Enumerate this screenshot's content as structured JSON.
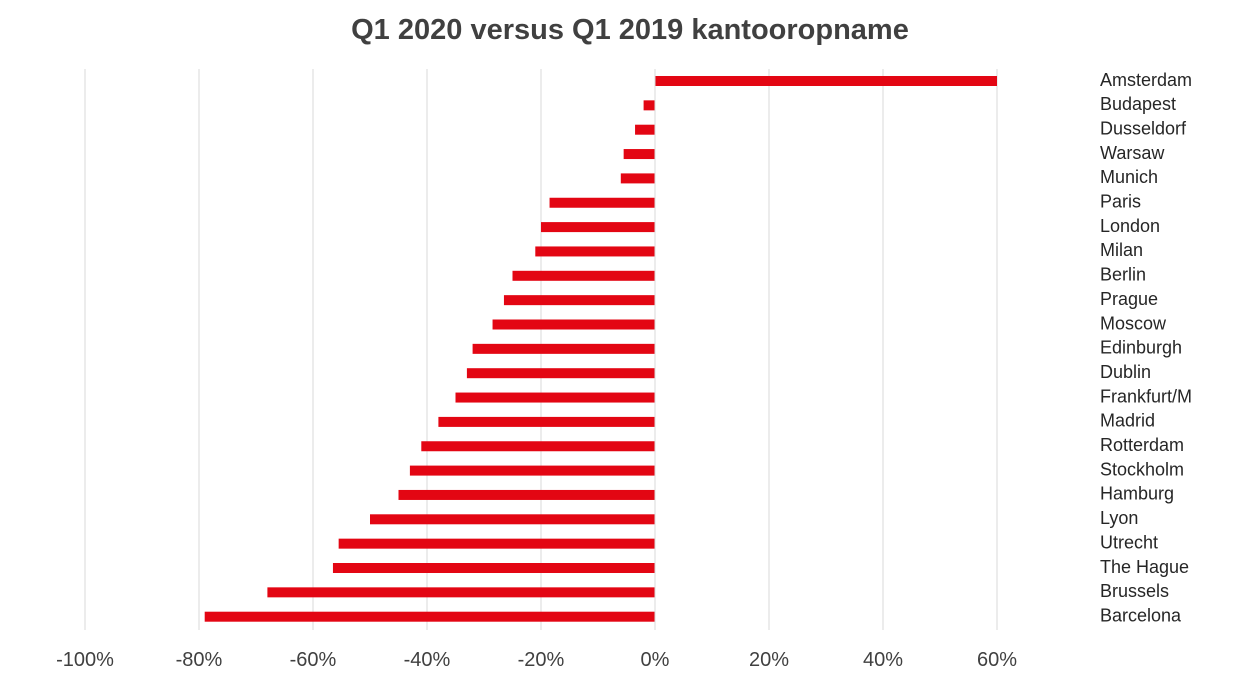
{
  "chart_data": {
    "type": "bar",
    "orientation": "horizontal",
    "title": "Q1 2020 versus Q1 2019 kantooropname",
    "xlabel": "",
    "ylabel": "",
    "xlim": [
      -100,
      60
    ],
    "xticks": [
      -100,
      -80,
      -60,
      -40,
      -20,
      0,
      20,
      40,
      60
    ],
    "xtick_labels": [
      "-100%",
      "-80%",
      "-60%",
      "-40%",
      "-20%",
      "0%",
      "20%",
      "40%",
      "60%"
    ],
    "grid": "vertical",
    "category_labels_position": "right",
    "categories": [
      "Amsterdam",
      "Budapest",
      "Dusseldorf",
      "Warsaw",
      "Munich",
      "Paris",
      "London",
      "Milan",
      "Berlin",
      "Prague",
      "Moscow",
      "Edinburgh",
      "Dublin",
      "Frankfurt/M",
      "Madrid",
      "Rotterdam",
      "Stockholm",
      "Hamburg",
      "Lyon",
      "Utrecht",
      "The Hague",
      "Brussels",
      "Barcelona"
    ],
    "values": [
      60,
      -2,
      -3.5,
      -5.5,
      -6,
      -18.5,
      -20,
      -21,
      -25,
      -26.5,
      -28.5,
      -32,
      -33,
      -35,
      -38,
      -41,
      -43,
      -45,
      -50,
      -55.5,
      -56.5,
      -68,
      -79
    ],
    "bar_color": "#e30613"
  }
}
